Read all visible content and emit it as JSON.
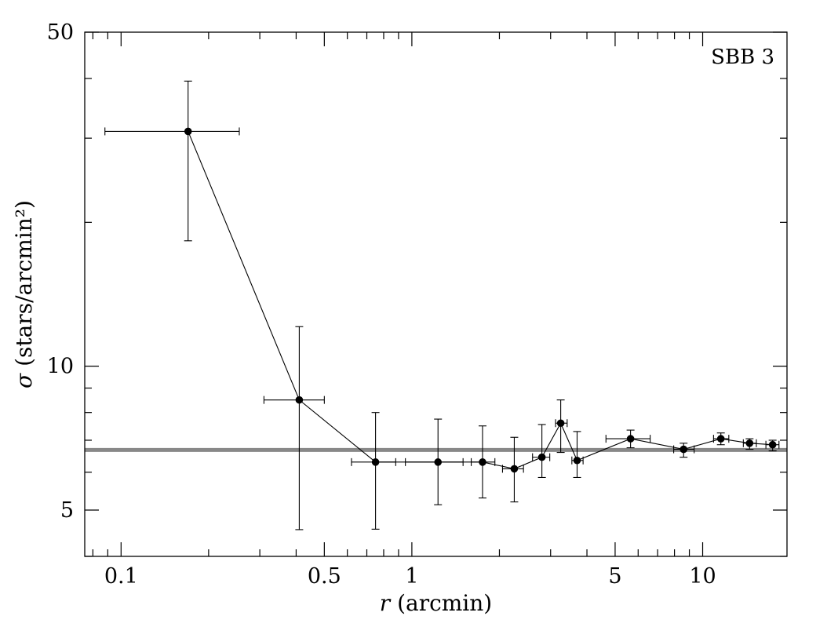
{
  "chart_data": {
    "type": "scatter",
    "xscale": "log",
    "yscale": "log",
    "xlim": [
      0.075,
      19.5
    ],
    "ylim": [
      4.0,
      50
    ],
    "x_ticks": [
      0.1,
      0.5,
      1,
      5,
      10
    ],
    "x_tick_labels": [
      "0.1",
      "0.5",
      "1",
      "5",
      "10"
    ],
    "y_ticks": [
      5,
      10,
      50
    ],
    "y_tick_labels": [
      "5",
      "10",
      "50"
    ],
    "xlabel": {
      "symbol": "r",
      "rest": " (arcmin)"
    },
    "ylabel": {
      "symbol": "σ",
      "rest": " (stars/arcmin²)"
    },
    "annotation": "SBB 3",
    "grid": false,
    "background_level": 6.68,
    "points": [
      {
        "x": 0.17,
        "y": 31.0,
        "xerr": [
          0.088,
          0.255
        ],
        "yerr": [
          18.3,
          39.5
        ]
      },
      {
        "x": 0.41,
        "y": 8.5,
        "xerr": [
          0.31,
          0.5
        ],
        "yerr": [
          4.55,
          12.1
        ]
      },
      {
        "x": 0.75,
        "y": 6.3,
        "xerr": [
          0.62,
          0.88
        ],
        "yerr": [
          4.56,
          8.0
        ]
      },
      {
        "x": 1.23,
        "y": 6.3,
        "xerr": [
          0.95,
          1.5
        ],
        "yerr": [
          5.13,
          7.75
        ]
      },
      {
        "x": 1.75,
        "y": 6.3,
        "xerr": [
          1.6,
          1.93
        ],
        "yerr": [
          5.3,
          7.5
        ]
      },
      {
        "x": 2.25,
        "y": 6.1,
        "xerr": [
          2.05,
          2.42
        ],
        "yerr": [
          5.2,
          7.1
        ]
      },
      {
        "x": 2.8,
        "y": 6.45,
        "xerr": [
          2.6,
          2.98
        ],
        "yerr": [
          5.85,
          7.55
        ]
      },
      {
        "x": 3.25,
        "y": 7.6,
        "xerr": [
          3.12,
          3.42
        ],
        "yerr": [
          6.6,
          8.5
        ]
      },
      {
        "x": 3.7,
        "y": 6.35,
        "xerr": [
          3.55,
          3.88
        ],
        "yerr": [
          5.85,
          7.3
        ]
      },
      {
        "x": 5.65,
        "y": 7.05,
        "xerr": [
          4.65,
          6.6
        ],
        "yerr": [
          6.75,
          7.35
        ]
      },
      {
        "x": 8.6,
        "y": 6.7,
        "xerr": [
          7.95,
          9.35
        ],
        "yerr": [
          6.45,
          6.9
        ]
      },
      {
        "x": 11.55,
        "y": 7.05,
        "xerr": [
          10.9,
          12.3
        ],
        "yerr": [
          6.85,
          7.25
        ]
      },
      {
        "x": 14.5,
        "y": 6.9,
        "xerr": [
          13.8,
          15.3
        ],
        "yerr": [
          6.7,
          7.05
        ]
      },
      {
        "x": 17.4,
        "y": 6.85,
        "xerr": [
          16.5,
          18.3
        ],
        "yerr": [
          6.65,
          7.0
        ]
      }
    ],
    "colors": {
      "data": "#000000",
      "background_line": "#888888",
      "axes": "#000000"
    }
  }
}
